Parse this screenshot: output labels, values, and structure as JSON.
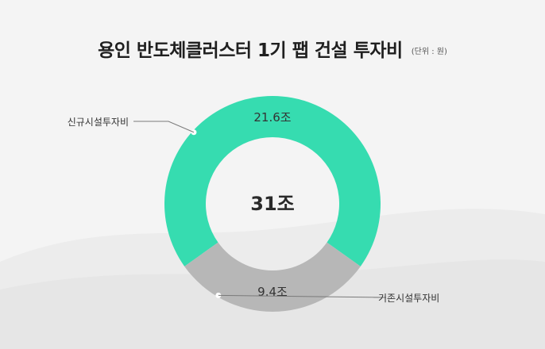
{
  "chart_data": {
    "type": "pie",
    "title": "용인 반도체클러스터 1기 팹 건설 투자비",
    "unit_note": "(단위 : 원)",
    "center_label": "31조",
    "slices": [
      {
        "name": "신규시설투자비",
        "value": 21.6,
        "label": "21.6조",
        "color": "#36dcb0"
      },
      {
        "name": "기존시설투자비",
        "value": 9.4,
        "label": "9.4조",
        "color": "#b7b7b7"
      }
    ],
    "total": 31,
    "legend": "callouts"
  }
}
